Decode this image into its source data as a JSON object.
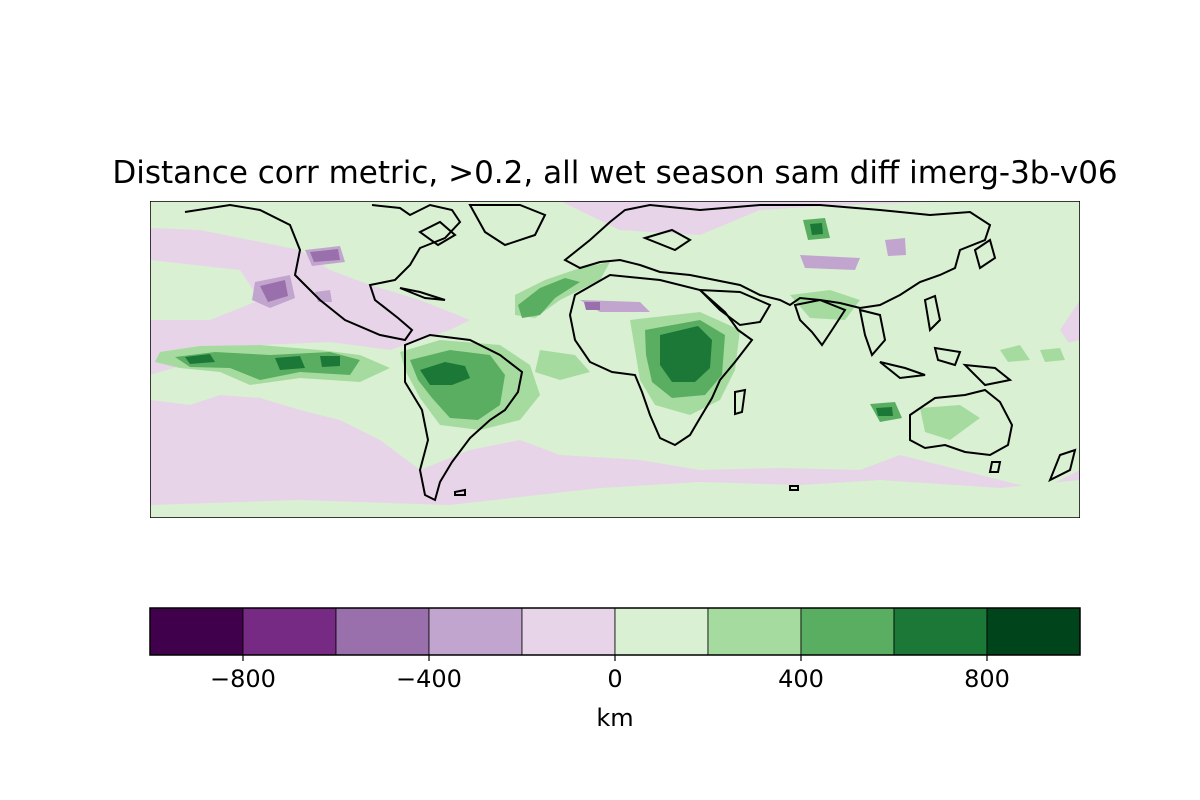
{
  "title": "Distance corr metric, >0.2, all wet season sam diff imerg-3b-v06",
  "colorbar": {
    "label": "km",
    "levels": [
      -1000,
      -800,
      -600,
      -400,
      -200,
      0,
      200,
      400,
      600,
      800,
      1000
    ],
    "colors": [
      "#40004b",
      "#762a83",
      "#9970ab",
      "#c2a5cf",
      "#e7d4e8",
      "#d9f0d3",
      "#a6dba0",
      "#5aae61",
      "#1b7837",
      "#00441b"
    ],
    "ticks": [
      {
        "value": -800,
        "label": "−800"
      },
      {
        "value": -400,
        "label": "−400"
      },
      {
        "value": 0,
        "label": "0"
      },
      {
        "value": 400,
        "label": "400"
      },
      {
        "value": 800,
        "label": "800"
      }
    ]
  },
  "map": {
    "projection": "PlateCarree",
    "extent": {
      "lon": [
        -180,
        180
      ],
      "lat": [
        -60,
        60
      ]
    },
    "background_class_color": "#e7d4e8"
  }
}
